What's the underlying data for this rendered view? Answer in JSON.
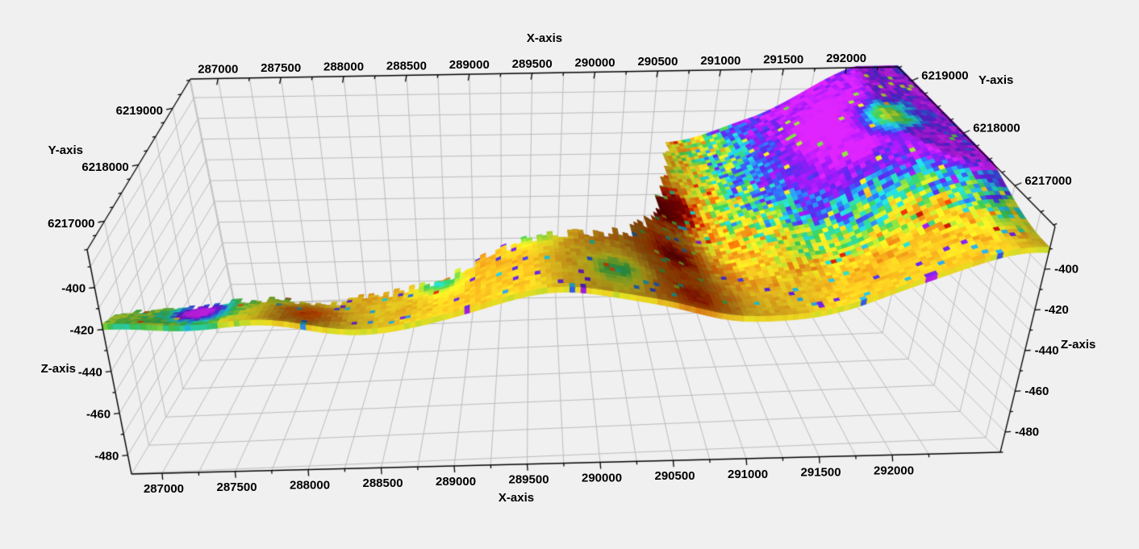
{
  "window": {
    "background_color": "#f0f0f0"
  },
  "chart_data": {
    "type": "surface",
    "projection": "3d-perspective",
    "axes": {
      "x": {
        "label": "X-axis",
        "ticks": [
          287000,
          287500,
          288000,
          288500,
          289000,
          289500,
          290000,
          290500,
          291000,
          291500,
          292000
        ],
        "minor_tick_step": 250,
        "label_positions": [
          "top",
          "bottom"
        ]
      },
      "y": {
        "label": "Y-axis",
        "ticks": [
          6217000,
          6218000,
          6219000
        ],
        "minor_tick_step": 250,
        "label_positions": [
          "left",
          "right"
        ]
      },
      "z": {
        "label": "Z-axis",
        "ticks": [
          -400,
          -420,
          -440,
          -460,
          -480
        ],
        "minor_tick_step": 10,
        "label_positions": [
          "left",
          "right"
        ]
      }
    },
    "ranges": {
      "x": [
        286800,
        292700
      ],
      "y": [
        6216200,
        6219500
      ],
      "z": [
        -490,
        -379
      ]
    },
    "surface": {
      "description": "Irregular elongated horizon surface draped with a mottled attribute map. Thin flat western tip near z=-420, broad orange central mound rising to about z=-400, a frontal saddle near x=290100, then a high eastern plateau (z -380 to -400) colored magenta/violet with cyan, blue, green and yellow mottling; southern flank of the plateau is orange-yellow. Surface is absent toward the back (north) on the western half.",
      "approx_z_grid": {
        "x": [
          287000,
          287625,
          288250,
          288875,
          289500,
          290125,
          290750,
          291375,
          292000
        ],
        "y": [
          6216600,
          6217300,
          6218000,
          6218700,
          6219400
        ],
        "z": [
          [
            -418,
            -417,
            -420,
            -412,
            -406,
            -413,
            -419,
            -411,
            -401
          ],
          [
            null,
            null,
            null,
            null,
            -402,
            -415,
            -408,
            -397,
            -394
          ],
          [
            null,
            null,
            null,
            null,
            null,
            -414,
            -403,
            -393,
            -391
          ],
          [
            null,
            null,
            null,
            null,
            null,
            null,
            -399,
            -391,
            -388
          ],
          [
            null,
            null,
            null,
            null,
            null,
            null,
            -396,
            -389,
            -384
          ]
        ]
      },
      "regions": [
        {
          "area": "west tip x<287400",
          "z": "-418 to -421",
          "appearance": "yellow-green band with cyan, dark-red and indigo speckles"
        },
        {
          "area": "central mound x 288700-289800",
          "z": "-398 to -410",
          "appearance": "orange/amber with scattered cyan patches and small dark-red spots"
        },
        {
          "area": "front saddle x~290100",
          "z": "-412 to -418",
          "appearance": "orange-yellow"
        },
        {
          "area": "east plateau x>290700",
          "z": "-380 to -400",
          "appearance": "magenta/violet top with heavy cyan-blue-green mottling, yellow pockets, orange-yellow southern flank"
        }
      ]
    },
    "colormap": {
      "stops": [
        [
          0.0,
          "#7f0000"
        ],
        [
          0.07,
          "#a80f05"
        ],
        [
          0.14,
          "#cf2600"
        ],
        [
          0.22,
          "#e05f00"
        ],
        [
          0.3,
          "#cd7a14"
        ],
        [
          0.4,
          "#d9b51e"
        ],
        [
          0.47,
          "#dfd21f"
        ],
        [
          0.55,
          "#a3cc2d"
        ],
        [
          0.63,
          "#37b34a"
        ],
        [
          0.72,
          "#1ec6c6"
        ],
        [
          0.8,
          "#2a62d8"
        ],
        [
          0.87,
          "#4b24cb"
        ],
        [
          0.93,
          "#8c16d4"
        ],
        [
          1.0,
          "#c120e2"
        ]
      ]
    },
    "style": {
      "grid_color": "#bcbcbc",
      "axis_color": "#000000",
      "tick_label_color": "#000000",
      "tick_label_font_px": 15
    }
  }
}
